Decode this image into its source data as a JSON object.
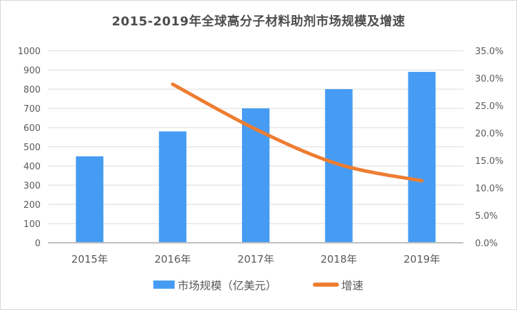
{
  "chart_data": {
    "type": "combo",
    "title": "2015-2019年全球高分子材料助剂市场规模及增速",
    "categories": [
      "2015年",
      "2016年",
      "2017年",
      "2018年",
      "2019年"
    ],
    "series": [
      {
        "name": "市场规模（亿美元）",
        "type": "bar",
        "axis": "left",
        "color": "#469CF3",
        "values": [
          450,
          580,
          700,
          800,
          890
        ]
      },
      {
        "name": "增速",
        "type": "line",
        "axis": "right",
        "color": "#ED7D31",
        "values": [
          null,
          28.9,
          20.7,
          14.3,
          11.3
        ]
      }
    ],
    "left_axis": {
      "min": 0,
      "max": 1000,
      "step": 100,
      "tick_labels": [
        "0",
        "100",
        "200",
        "300",
        "400",
        "500",
        "600",
        "700",
        "800",
        "900",
        "1000"
      ]
    },
    "right_axis": {
      "min": 0,
      "max": 35,
      "step": 5,
      "tick_labels": [
        "0.0%",
        "5.0%",
        "10.0%",
        "15.0%",
        "20.0%",
        "25.0%",
        "30.0%",
        "35.0%"
      ]
    },
    "grid": true,
    "legend_position": "bottom",
    "colors": {
      "grid": "#D9D9D9",
      "axis_line": "#BFBFBF",
      "text": "#595959"
    }
  }
}
